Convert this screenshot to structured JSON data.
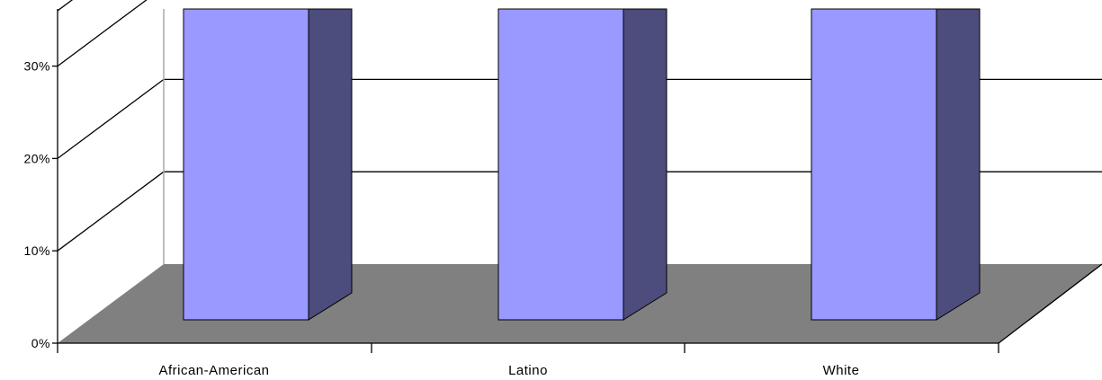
{
  "chart_data": {
    "type": "bar",
    "style": "3d-column",
    "title": "",
    "xlabel": "",
    "ylabel": "",
    "categories": [
      "African-American",
      "Latino",
      "White"
    ],
    "series": [
      {
        "values": [
          36,
          36,
          36
        ]
      }
    ],
    "values_note_visible_top_cropped": true,
    "ylim": [
      0,
      36
    ],
    "y_ticks": [
      {
        "value": 0,
        "label": "0%"
      },
      {
        "value": 10,
        "label": "10%"
      },
      {
        "value": 20,
        "label": "20%"
      },
      {
        "value": 30,
        "label": "30%"
      }
    ],
    "grid": true,
    "legend": "none",
    "colors": {
      "bar_front": "#9999ff",
      "bar_side": "#4c4c7d",
      "floor": "#808080",
      "grid": "#000000",
      "back_wall_edge": "#a8a8a8"
    }
  }
}
